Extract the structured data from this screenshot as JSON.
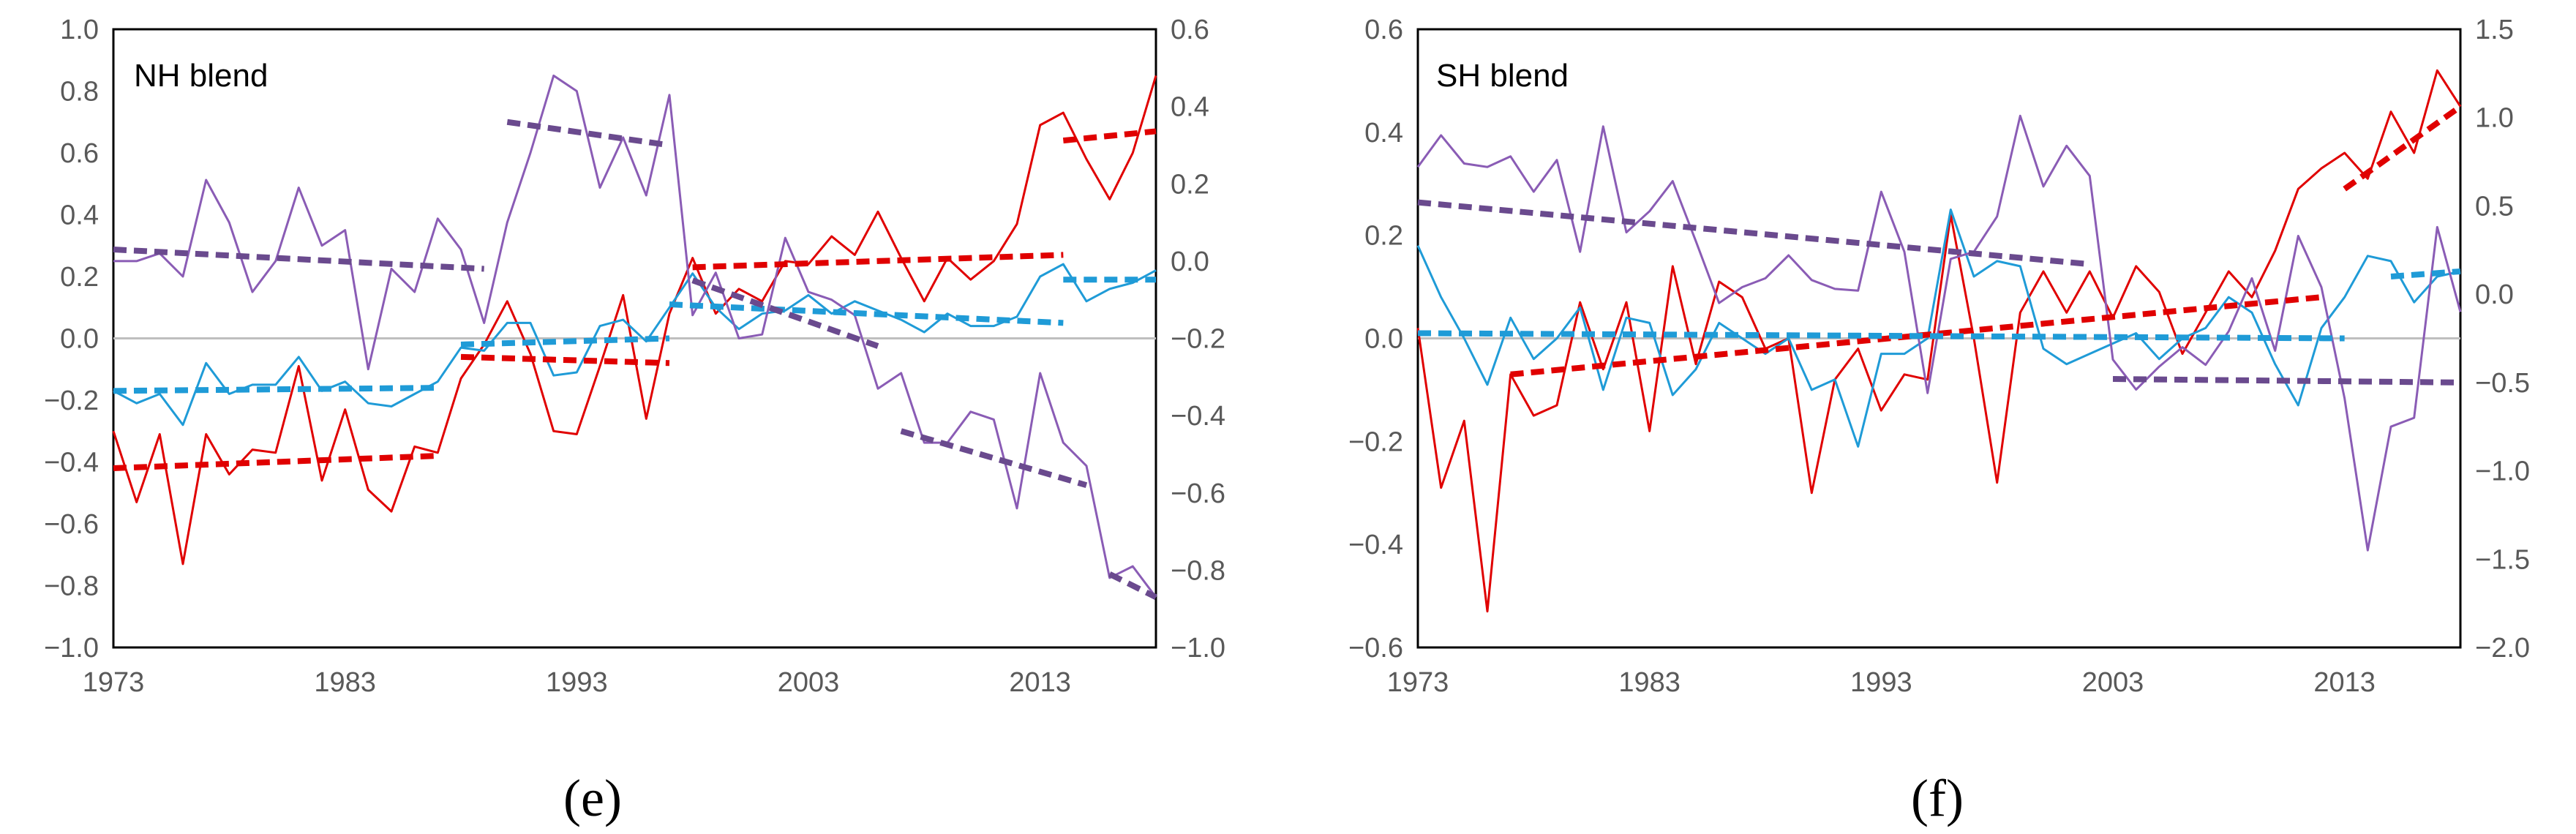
{
  "chart_data": [
    {
      "type": "line",
      "title": "NH blend",
      "panel_label": "(e)",
      "x_ticks": [
        "1973",
        "1983",
        "1993",
        "2003",
        "2013"
      ],
      "xlim": [
        1973,
        2018
      ],
      "ylim_left": [
        -1.0,
        1.0
      ],
      "ylim_right": [
        -1.0,
        0.6
      ],
      "y_ticks_left": [
        "1.0",
        "0.8",
        "0.6",
        "0.4",
        "0.2",
        "0.0",
        "−0.2",
        "−0.4",
        "−0.6",
        "−0.8",
        "−1.0"
      ],
      "y_ticks_right": [
        "0.6",
        "0.4",
        "0.2",
        "0.0",
        "−0.2",
        "−0.4",
        "−0.6",
        "−0.8",
        "−1.0"
      ],
      "reference_line": 0.0,
      "series": [
        {
          "name": "red",
          "axis": "left",
          "color": "#e00000",
          "x": [
            1973,
            1974,
            1975,
            1976,
            1977,
            1978,
            1979,
            1980,
            1981,
            1982,
            1983,
            1984,
            1985,
            1986,
            1987,
            1988,
            1989,
            1990,
            1991,
            1992,
            1993,
            1994,
            1995,
            1996,
            1997,
            1998,
            1999,
            2000,
            2001,
            2002,
            2003,
            2004,
            2005,
            2006,
            2007,
            2008,
            2009,
            2010,
            2011,
            2012,
            2013,
            2014,
            2015,
            2016,
            2017,
            2018
          ],
          "values": [
            -0.3,
            -0.53,
            -0.31,
            -0.73,
            -0.31,
            -0.44,
            -0.36,
            -0.37,
            -0.09,
            -0.46,
            -0.23,
            -0.49,
            -0.56,
            -0.35,
            -0.37,
            -0.13,
            -0.02,
            0.12,
            -0.05,
            -0.3,
            -0.31,
            -0.09,
            0.14,
            -0.26,
            0.08,
            0.26,
            0.08,
            0.16,
            0.12,
            0.25,
            0.24,
            0.33,
            0.27,
            0.41,
            0.26,
            0.12,
            0.26,
            0.19,
            0.25,
            0.37,
            0.69,
            0.73,
            0.58,
            0.45,
            0.6,
            0.85
          ]
        },
        {
          "name": "blue",
          "axis": "left",
          "color": "#1f9bd7",
          "x": [
            1973,
            1974,
            1975,
            1976,
            1977,
            1978,
            1979,
            1980,
            1981,
            1982,
            1983,
            1984,
            1985,
            1986,
            1987,
            1988,
            1989,
            1990,
            1991,
            1992,
            1993,
            1994,
            1995,
            1996,
            1997,
            1998,
            1999,
            2000,
            2001,
            2002,
            2003,
            2004,
            2005,
            2006,
            2007,
            2008,
            2009,
            2010,
            2011,
            2012,
            2013,
            2014,
            2015,
            2016,
            2017,
            2018
          ],
          "values": [
            -0.17,
            -0.21,
            -0.18,
            -0.28,
            -0.08,
            -0.18,
            -0.15,
            -0.15,
            -0.06,
            -0.17,
            -0.14,
            -0.21,
            -0.22,
            -0.18,
            -0.14,
            -0.03,
            -0.04,
            0.05,
            0.05,
            -0.12,
            -0.11,
            0.04,
            0.06,
            -0.01,
            0.1,
            0.21,
            0.1,
            0.03,
            0.08,
            0.09,
            0.14,
            0.08,
            0.12,
            0.09,
            0.06,
            0.02,
            0.08,
            0.04,
            0.04,
            0.07,
            0.2,
            0.24,
            0.12,
            0.16,
            0.18,
            0.22
          ]
        },
        {
          "name": "purple",
          "axis": "right",
          "color": "#8a5cb5",
          "x": [
            1973,
            1974,
            1975,
            1976,
            1977,
            1978,
            1979,
            1980,
            1981,
            1982,
            1983,
            1984,
            1985,
            1986,
            1987,
            1988,
            1989,
            1990,
            1991,
            1992,
            1993,
            1994,
            1995,
            1996,
            1997,
            1998,
            1999,
            2000,
            2001,
            2002,
            2003,
            2004,
            2005,
            2006,
            2007,
            2008,
            2009,
            2010,
            2011,
            2012,
            2013,
            2014,
            2015,
            2016,
            2017,
            2018
          ],
          "values": [
            0.0,
            0.0,
            0.02,
            -0.04,
            0.21,
            0.1,
            -0.08,
            0.0,
            0.19,
            0.04,
            0.08,
            -0.28,
            -0.02,
            -0.08,
            0.11,
            0.03,
            -0.16,
            0.1,
            0.28,
            0.48,
            0.44,
            0.19,
            0.32,
            0.17,
            0.43,
            -0.14,
            -0.03,
            -0.2,
            -0.19,
            0.06,
            -0.08,
            -0.1,
            -0.14,
            -0.33,
            -0.29,
            -0.47,
            -0.47,
            -0.39,
            -0.41,
            -0.64,
            -0.29,
            -0.47,
            -0.53,
            -0.82,
            -0.79,
            -0.87
          ]
        }
      ],
      "trend_lines": [
        {
          "axis": "left",
          "color": "#e00000",
          "x": [
            1973,
            1987
          ],
          "y": [
            -0.42,
            -0.38
          ]
        },
        {
          "axis": "left",
          "color": "#e00000",
          "x": [
            1988,
            1997
          ],
          "y": [
            -0.06,
            -0.08
          ]
        },
        {
          "axis": "left",
          "color": "#e00000",
          "x": [
            1998,
            2014
          ],
          "y": [
            0.23,
            0.27
          ]
        },
        {
          "axis": "left",
          "color": "#e00000",
          "x": [
            2014,
            2018
          ],
          "y": [
            0.64,
            0.67
          ]
        },
        {
          "axis": "left",
          "color": "#1f9bd7",
          "x": [
            1973,
            1987
          ],
          "y": [
            -0.17,
            -0.16
          ]
        },
        {
          "axis": "left",
          "color": "#1f9bd7",
          "x": [
            1988,
            1997
          ],
          "y": [
            -0.02,
            0.0
          ]
        },
        {
          "axis": "left",
          "color": "#1f9bd7",
          "x": [
            1997,
            2014
          ],
          "y": [
            0.11,
            0.05
          ]
        },
        {
          "axis": "left",
          "color": "#1f9bd7",
          "x": [
            2014,
            2018
          ],
          "y": [
            0.19,
            0.19
          ]
        },
        {
          "axis": "right",
          "color": "#6a4a8e",
          "x": [
            1973,
            1989
          ],
          "y": [
            0.03,
            -0.02
          ]
        },
        {
          "axis": "right",
          "color": "#6a4a8e",
          "x": [
            1990,
            1997
          ],
          "y": [
            0.36,
            0.3
          ]
        },
        {
          "axis": "right",
          "color": "#6a4a8e",
          "x": [
            1998,
            2006
          ],
          "y": [
            -0.05,
            -0.22
          ]
        },
        {
          "axis": "right",
          "color": "#6a4a8e",
          "x": [
            2007,
            2015
          ],
          "y": [
            -0.44,
            -0.58
          ]
        },
        {
          "axis": "right",
          "color": "#6a4a8e",
          "x": [
            2016,
            2018
          ],
          "y": [
            -0.81,
            -0.87
          ]
        }
      ]
    },
    {
      "type": "line",
      "title": "SH blend",
      "panel_label": "(f)",
      "x_ticks": [
        "1973",
        "1983",
        "1993",
        "2003",
        "2013"
      ],
      "xlim": [
        1973,
        2018
      ],
      "ylim_left": [
        -0.6,
        0.6
      ],
      "ylim_right": [
        -2.0,
        1.5
      ],
      "y_ticks_left": [
        "0.6",
        "0.4",
        "0.2",
        "0.0",
        "−0.2",
        "−0.4",
        "−0.6"
      ],
      "y_ticks_right": [
        "1.5",
        "1.0",
        "0.5",
        "0.0",
        "−0.5",
        "−1.0",
        "−1.5",
        "−2.0"
      ],
      "reference_line": 0.0,
      "series": [
        {
          "name": "red",
          "axis": "left",
          "color": "#e00000",
          "x": [
            1973,
            1974,
            1975,
            1976,
            1977,
            1978,
            1979,
            1980,
            1981,
            1982,
            1983,
            1984,
            1985,
            1986,
            1987,
            1988,
            1989,
            1990,
            1991,
            1992,
            1993,
            1994,
            1995,
            1996,
            1997,
            1998,
            1999,
            2000,
            2001,
            2002,
            2003,
            2004,
            2005,
            2006,
            2007,
            2008,
            2009,
            2010,
            2011,
            2012,
            2013,
            2014,
            2015,
            2016,
            2017,
            2018
          ],
          "values": [
            0.02,
            -0.29,
            -0.16,
            -0.53,
            -0.07,
            -0.15,
            -0.13,
            0.07,
            -0.06,
            0.07,
            -0.18,
            0.14,
            -0.05,
            0.11,
            0.08,
            -0.02,
            0.0,
            -0.3,
            -0.08,
            -0.02,
            -0.14,
            -0.07,
            -0.08,
            0.24,
            0.0,
            -0.28,
            0.05,
            0.13,
            0.05,
            0.13,
            0.04,
            0.14,
            0.09,
            -0.03,
            0.05,
            0.13,
            0.08,
            0.17,
            0.29,
            0.33,
            0.36,
            0.31,
            0.44,
            0.36,
            0.52,
            0.45
          ]
        },
        {
          "name": "blue",
          "axis": "left",
          "color": "#1f9bd7",
          "x": [
            1973,
            1974,
            1975,
            1976,
            1977,
            1978,
            1979,
            1980,
            1981,
            1982,
            1983,
            1984,
            1985,
            1986,
            1987,
            1988,
            1989,
            1990,
            1991,
            1992,
            1993,
            1994,
            1995,
            1996,
            1997,
            1998,
            1999,
            2000,
            2001,
            2002,
            2003,
            2004,
            2005,
            2006,
            2007,
            2008,
            2009,
            2010,
            2011,
            2012,
            2013,
            2014,
            2015,
            2016,
            2017,
            2018
          ],
          "values": [
            0.18,
            0.08,
            0.0,
            -0.09,
            0.04,
            -0.04,
            0.0,
            0.06,
            -0.1,
            0.04,
            0.03,
            -0.11,
            -0.06,
            0.03,
            0.0,
            -0.03,
            0.0,
            -0.1,
            -0.08,
            -0.21,
            -0.03,
            -0.03,
            0.0,
            0.25,
            0.12,
            0.15,
            0.14,
            -0.02,
            -0.05,
            -0.03,
            -0.01,
            0.01,
            -0.04,
            0.0,
            0.02,
            0.08,
            0.05,
            -0.05,
            -0.13,
            0.02,
            0.08,
            0.16,
            0.15,
            0.07,
            0.12,
            0.13
          ]
        },
        {
          "name": "purple",
          "axis": "right",
          "color": "#8a5cb5",
          "x": [
            1973,
            1974,
            1975,
            1976,
            1977,
            1978,
            1979,
            1980,
            1981,
            1982,
            1983,
            1984,
            1985,
            1986,
            1987,
            1988,
            1989,
            1990,
            1991,
            1992,
            1993,
            1994,
            1995,
            1996,
            1997,
            1998,
            1999,
            2000,
            2001,
            2002,
            2003,
            2004,
            2005,
            2006,
            2007,
            2008,
            2009,
            2010,
            2011,
            2012,
            2013,
            2014,
            2015,
            2016,
            2017,
            2018
          ],
          "values": [
            0.72,
            0.9,
            0.74,
            0.72,
            0.78,
            0.58,
            0.76,
            0.24,
            0.95,
            0.35,
            0.47,
            0.64,
            0.3,
            -0.05,
            0.04,
            0.09,
            0.22,
            0.08,
            0.03,
            0.02,
            0.58,
            0.24,
            -0.56,
            0.2,
            0.24,
            0.44,
            1.01,
            0.61,
            0.84,
            0.67,
            -0.37,
            -0.54,
            -0.41,
            -0.3,
            -0.4,
            -0.21,
            0.09,
            -0.32,
            0.33,
            0.04,
            -0.59,
            -1.45,
            -0.75,
            -0.7,
            0.38,
            -0.1
          ]
        }
      ],
      "trend_lines": [
        {
          "axis": "left",
          "color": "#e00000",
          "x": [
            1977,
            2012
          ],
          "y": [
            -0.07,
            0.08
          ]
        },
        {
          "axis": "left",
          "color": "#e00000",
          "x": [
            2013,
            2018
          ],
          "y": [
            0.29,
            0.45
          ]
        },
        {
          "axis": "left",
          "color": "#1f9bd7",
          "x": [
            1973,
            2013
          ],
          "y": [
            0.01,
            0.0
          ]
        },
        {
          "axis": "left",
          "color": "#1f9bd7",
          "x": [
            2015,
            2018
          ],
          "y": [
            0.12,
            0.13
          ]
        },
        {
          "axis": "right",
          "color": "#6a4a8e",
          "x": [
            1973,
            2002
          ],
          "y": [
            0.52,
            0.17
          ]
        },
        {
          "axis": "right",
          "color": "#6a4a8e",
          "x": [
            2003,
            2018
          ],
          "y": [
            -0.48,
            -0.5
          ]
        }
      ]
    }
  ]
}
